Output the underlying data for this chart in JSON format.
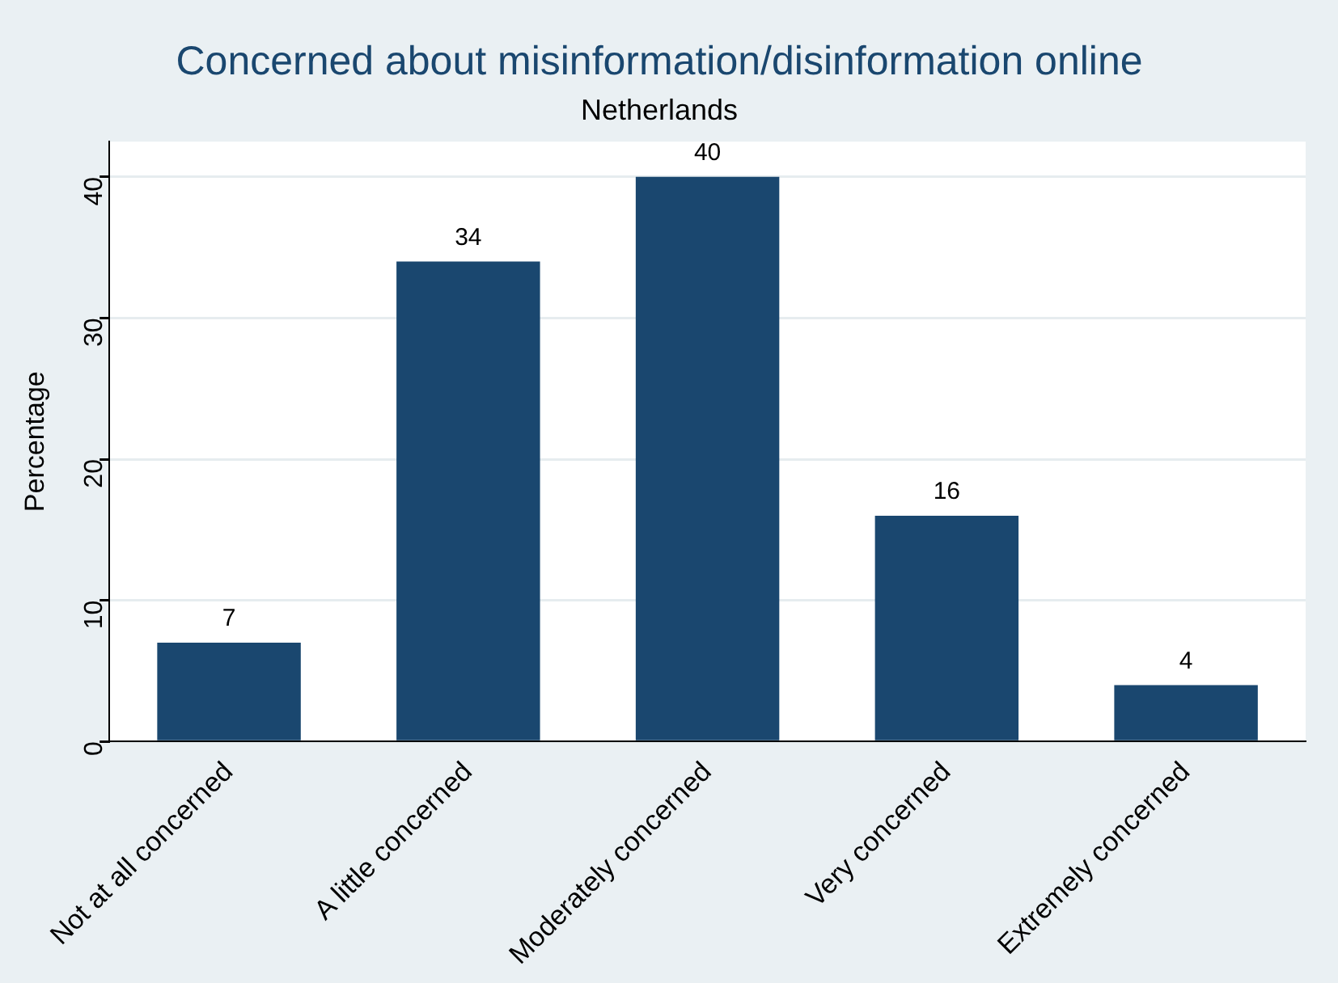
{
  "chart_data": {
    "type": "bar",
    "title": "Concerned about misinformation/disinformation online",
    "subtitle": "Netherlands",
    "ylabel": "Percentage",
    "categories": [
      "Not at all concerned",
      "A little concerned",
      "Moderately concerned",
      "Very concerned",
      "Extremely concerned"
    ],
    "values": [
      7,
      34,
      40,
      16,
      4
    ],
    "color": "#1a476f",
    "ylim": [
      0,
      42.5
    ],
    "yticks": [
      0,
      10,
      20,
      30,
      40
    ],
    "grid": "y",
    "legend": false,
    "data_labels": true
  }
}
